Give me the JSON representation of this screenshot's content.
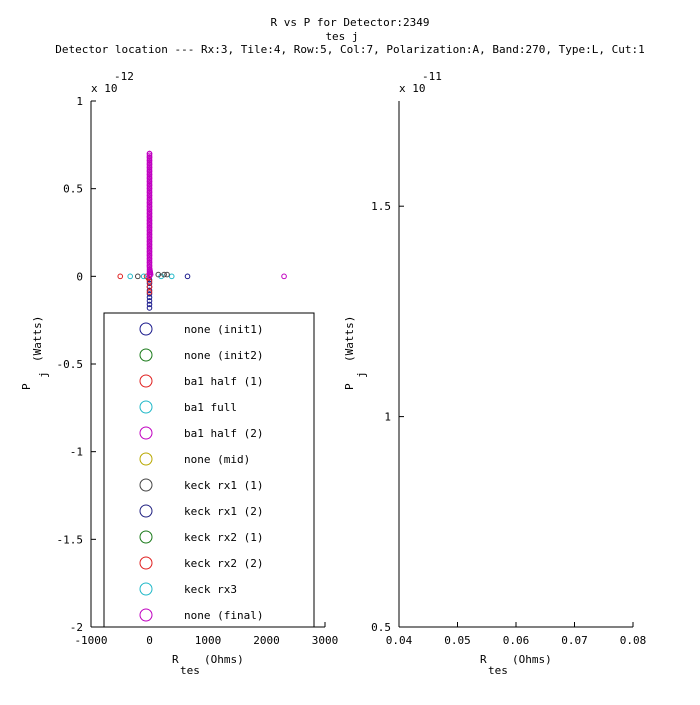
{
  "header": {
    "title_main": "R    vs P  for Detector:2349",
    "title_sub": "tes      j",
    "location": "Detector location --- Rx:3, Tile:4, Row:5, Col:7, Polarization:A, Band:270, Type:L, Cut:1"
  },
  "colors": {
    "blue": "#1a1a8c",
    "green": "#1a7a1a",
    "red": "#e02020",
    "cyan": "#20b8c8",
    "magenta": "#c000c0",
    "olive": "#b8a800",
    "dark": "#444444",
    "navy": "#202080"
  },
  "chart_data": [
    {
      "type": "scatter",
      "xlabel": "R",
      "xlabel_sub": "tes",
      "xlabel_unit": "(Ohms)",
      "ylabel": "P",
      "ylabel_sub": "j",
      "ylabel_unit": "(Watts)",
      "xlim": [
        -1000,
        3000
      ],
      "ylim": [
        -2e-12,
        1e-12
      ],
      "x_ticks": [
        -1000,
        0,
        1000,
        2000,
        3000
      ],
      "x_tick_labels": [
        "-1000",
        "0",
        "1000",
        "2000",
        "3000"
      ],
      "y_ticks": [
        -2e-12,
        -1.5e-12,
        -1e-12,
        -5e-13,
        0,
        5e-13,
        1e-12
      ],
      "y_tick_labels": [
        "-2",
        "-1.5",
        "-1",
        "-0.5",
        "0",
        "0.5",
        "1"
      ],
      "y_exponent_label": "x 10",
      "y_exponent": "-12",
      "legend": {
        "position": "lower-left",
        "entries": [
          {
            "label": "none (init1)",
            "color": "#1a1a8c"
          },
          {
            "label": "none (init2)",
            "color": "#1a7a1a"
          },
          {
            "label": "ba1 half (1)",
            "color": "#e02020"
          },
          {
            "label": "ba1 full",
            "color": "#20b8c8"
          },
          {
            "label": "ba1 half (2)",
            "color": "#c000c0"
          },
          {
            "label": "none (mid)",
            "color": "#b8a800"
          },
          {
            "label": "keck rx1 (1)",
            "color": "#444444"
          },
          {
            "label": "keck rx1 (2)",
            "color": "#202080"
          },
          {
            "label": "keck rx2 (1)",
            "color": "#1a7a1a"
          },
          {
            "label": "keck rx2 (2)",
            "color": "#e02020"
          },
          {
            "label": "keck rx3",
            "color": "#20b8c8"
          },
          {
            "label": "none (final)",
            "color": "#c000c0"
          }
        ]
      },
      "series": [
        {
          "color": "#c000c0",
          "x": [
            0,
            0,
            0,
            0,
            0,
            0,
            0,
            0,
            0,
            0,
            0,
            0,
            0,
            0,
            0,
            0,
            0,
            0,
            0,
            0,
            0,
            0,
            0,
            0,
            0,
            0,
            0,
            0,
            0,
            0,
            0,
            0,
            0,
            5,
            10,
            15,
            20,
            2300
          ],
          "y": [
            7e-13,
            6.8e-13,
            6.6e-13,
            6.4e-13,
            6.2e-13,
            6e-13,
            5.8e-13,
            5.6e-13,
            5.4e-13,
            5.2e-13,
            5e-13,
            4.8e-13,
            4.6e-13,
            4.4e-13,
            4.2e-13,
            4e-13,
            3.8e-13,
            3.6e-13,
            3.4e-13,
            3.2e-13,
            3e-13,
            2.8e-13,
            2.6e-13,
            2.4e-13,
            2.2e-13,
            2e-13,
            1.8e-13,
            1.6e-13,
            1.4e-13,
            1.2e-13,
            1e-13,
            8e-14,
            6e-14,
            4e-14,
            3e-14,
            2e-14,
            1e-14,
            0
          ]
        },
        {
          "color": "#1a1a8c",
          "x": [
            650,
            0,
            0,
            0,
            0,
            0,
            0,
            0,
            0,
            0
          ],
          "y": [
            0,
            -2e-14,
            -4e-14,
            -6e-14,
            -8e-14,
            -1e-13,
            -1.2e-13,
            -1.4e-13,
            -1.6e-13,
            -1.8e-13
          ]
        },
        {
          "color": "#e02020",
          "x": [
            -500,
            -50,
            -20,
            0,
            0,
            0
          ],
          "y": [
            0,
            0,
            -1e-14,
            -3e-14,
            -6e-14,
            -9e-14
          ]
        },
        {
          "color": "#20b8c8",
          "x": [
            -330,
            -100,
            200,
            380
          ],
          "y": [
            0,
            0,
            0,
            0
          ]
        },
        {
          "color": "#444444",
          "x": [
            -200,
            150,
            250,
            300
          ],
          "y": [
            0,
            1e-14,
            1e-14,
            1e-14
          ]
        }
      ]
    },
    {
      "type": "scatter",
      "xlabel": "R",
      "xlabel_sub": "tes",
      "xlabel_unit": "(Ohms)",
      "ylabel": "P",
      "ylabel_sub": "j",
      "ylabel_unit": "(Watts)",
      "xlim": [
        0.04,
        0.08
      ],
      "ylim": [
        5e-12,
        1.75e-11
      ],
      "x_ticks": [
        0.04,
        0.05,
        0.06,
        0.07,
        0.08
      ],
      "x_tick_labels": [
        "0.04",
        "0.05",
        "0.06",
        "0.07",
        "0.08"
      ],
      "y_ticks": [
        5e-12,
        1e-11,
        1.5e-11
      ],
      "y_tick_labels": [
        "0.5",
        "1",
        "1.5"
      ],
      "y_exponent_label": "x 10",
      "y_exponent": "-11",
      "series": []
    }
  ]
}
